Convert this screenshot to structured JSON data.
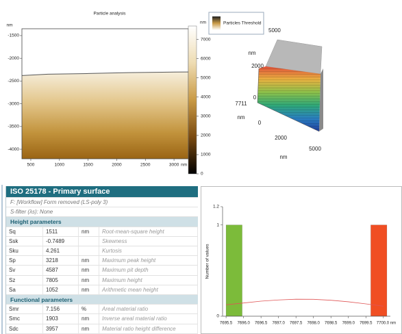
{
  "particle_analysis": {
    "title": "Particle analysis",
    "y_unit": "nm",
    "x_unit": "nm",
    "xlim": [
      345,
      3250
    ],
    "ylim": [
      -4210,
      -1350
    ],
    "xticks": [
      500,
      1000,
      1500,
      2000,
      2500,
      3000
    ],
    "yticks": [
      -1500,
      -2000,
      -2500,
      -3000,
      -3500,
      -4000
    ],
    "profile": {
      "x": [
        345,
        800,
        1500,
        2200,
        2800,
        3250
      ],
      "y": [
        -2380,
        -2350,
        -2335,
        -2315,
        -2305,
        -2300
      ]
    },
    "colorbar": {
      "unit": "nm",
      "lim": [
        0,
        7700
      ],
      "ticks": [
        0,
        1000,
        2000,
        3000,
        4000,
        5000,
        6000,
        7000
      ]
    }
  },
  "view3d": {
    "legend": "Particles Threshold",
    "labels": [
      "5000",
      "nm",
      "2000",
      "0",
      "7711",
      "nm",
      "0",
      "2000",
      "nm",
      "5000"
    ]
  },
  "table": {
    "title": "ISO 25178 - Primary surface",
    "notes": [
      "F: [Workflow] Form removed (LS-poly 3)",
      "S-filter (λs): None"
    ],
    "sections": [
      {
        "header": "Height parameters",
        "rows": [
          [
            "Sq",
            "1511",
            "nm",
            "Root-mean-square height"
          ],
          [
            "Ssk",
            "-0.7489",
            "",
            "Skewness"
          ],
          [
            "Sku",
            "4.261",
            "",
            "Kurtosis"
          ],
          [
            "Sp",
            "3218",
            "nm",
            "Maximum peak height"
          ],
          [
            "Sv",
            "4587",
            "nm",
            "Maximum pit depth"
          ],
          [
            "Sz",
            "7805",
            "nm",
            "Maximum height"
          ],
          [
            "Sa",
            "1052",
            "nm",
            "Arithmetic mean height"
          ]
        ]
      },
      {
        "header": "Functional parameters",
        "rows": [
          [
            "Smr",
            "7.156",
            "%",
            "Areal material ratio"
          ],
          [
            "Smc",
            "1903",
            "nm",
            "Inverse areal material ratio"
          ],
          [
            "Sdc",
            "3957",
            "nm",
            "Material ratio height difference"
          ]
        ]
      }
    ]
  },
  "chart_data": {
    "type": "histogram",
    "y_label": "Number of values",
    "bins": [
      7695.5,
      7695.96,
      7696.42,
      7696.88,
      7697.34,
      7697.8,
      7698.26,
      7698.72,
      7699.18,
      7699.64,
      7700.1
    ],
    "counts": [
      1,
      0,
      0,
      0,
      0,
      0,
      0,
      0,
      0,
      1
    ],
    "bar_colors": [
      "#7cbb3a",
      "#9cc23a",
      "#bcc63a",
      "#d8c23a",
      "#e8b030",
      "#f0982c",
      "#f28028",
      "#f26a26",
      "#f15a24",
      "#f04e23"
    ],
    "fit": {
      "x": [
        7695.5,
        7696.0,
        7696.5,
        7697.0,
        7697.5,
        7698.0,
        7698.5,
        7699.0,
        7699.5,
        7700.0
      ],
      "y": [
        0.125,
        0.145,
        0.165,
        0.178,
        0.186,
        0.185,
        0.175,
        0.158,
        0.135,
        0.11
      ],
      "color": "#e05555"
    },
    "xlim": [
      7695.4,
      7700.2
    ],
    "ylim": [
      0,
      1.2
    ],
    "xticks": [
      7695.5,
      {
        "value": 7696,
        "label": "7696.0"
      },
      7696.5,
      {
        "value": 7697,
        "label": "7697.0"
      },
      7697.5,
      {
        "value": 7698,
        "label": "7698.0"
      },
      7698.5,
      {
        "value": 7699,
        "label": "7699.0"
      },
      7699.5,
      {
        "value": 7700,
        "label": "7700.0 nm"
      }
    ],
    "yticks": [
      0,
      1,
      1.2
    ]
  }
}
